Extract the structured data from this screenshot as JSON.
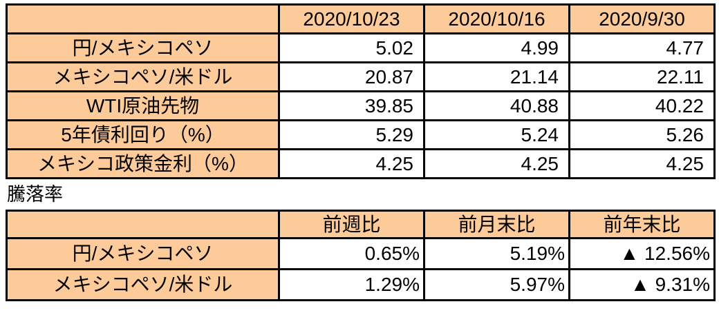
{
  "colors": {
    "header_fill": "#FDCB99",
    "border": "#000000",
    "text": "#000000",
    "background": "#ffffff"
  },
  "section_title": "騰落率",
  "rates_table": {
    "columns": [
      "2020/10/23",
      "2020/10/16",
      "2020/9/30"
    ],
    "rows": [
      {
        "label": "円/メキシコペソ",
        "values": [
          "5.02",
          "4.99",
          "4.77"
        ]
      },
      {
        "label": "メキシコペソ/米ドル",
        "values": [
          "20.87",
          "21.14",
          "22.11"
        ]
      },
      {
        "label": "WTI原油先物",
        "values": [
          "39.85",
          "40.88",
          "40.22"
        ]
      },
      {
        "label": "5年債利回り（%）",
        "values": [
          "5.29",
          "5.24",
          "5.26"
        ]
      },
      {
        "label": "メキシコ政策金利（%）",
        "values": [
          "4.25",
          "4.25",
          "4.25"
        ]
      }
    ]
  },
  "change_table": {
    "columns": [
      "前週比",
      "前月末比",
      "前年末比"
    ],
    "rows": [
      {
        "label": "円/メキシコペソ",
        "values": [
          "0.65%",
          "5.19%",
          "▲ 12.56%"
        ]
      },
      {
        "label": "メキシコペソ/米ドル",
        "values": [
          "1.29%",
          "5.97%",
          "▲ 9.31%"
        ]
      }
    ]
  },
  "chart_data": [
    {
      "type": "table",
      "title": "",
      "columns": [
        "",
        "2020/10/23",
        "2020/10/16",
        "2020/9/30"
      ],
      "rows": [
        [
          "円/メキシコペソ",
          5.02,
          4.99,
          4.77
        ],
        [
          "メキシコペソ/米ドル",
          20.87,
          21.14,
          22.11
        ],
        [
          "WTI原油先物",
          39.85,
          40.88,
          40.22
        ],
        [
          "5年債利回り（%）",
          5.29,
          5.24,
          5.26
        ],
        [
          "メキシコ政策金利（%）",
          4.25,
          4.25,
          4.25
        ]
      ]
    },
    {
      "type": "table",
      "title": "騰落率",
      "columns": [
        "",
        "前週比",
        "前月末比",
        "前年末比"
      ],
      "rows": [
        [
          "円/メキシコペソ",
          "0.65%",
          "5.19%",
          "▲ 12.56%"
        ],
        [
          "メキシコペソ/米ドル",
          "1.29%",
          "5.97%",
          "▲ 9.31%"
        ]
      ]
    }
  ]
}
